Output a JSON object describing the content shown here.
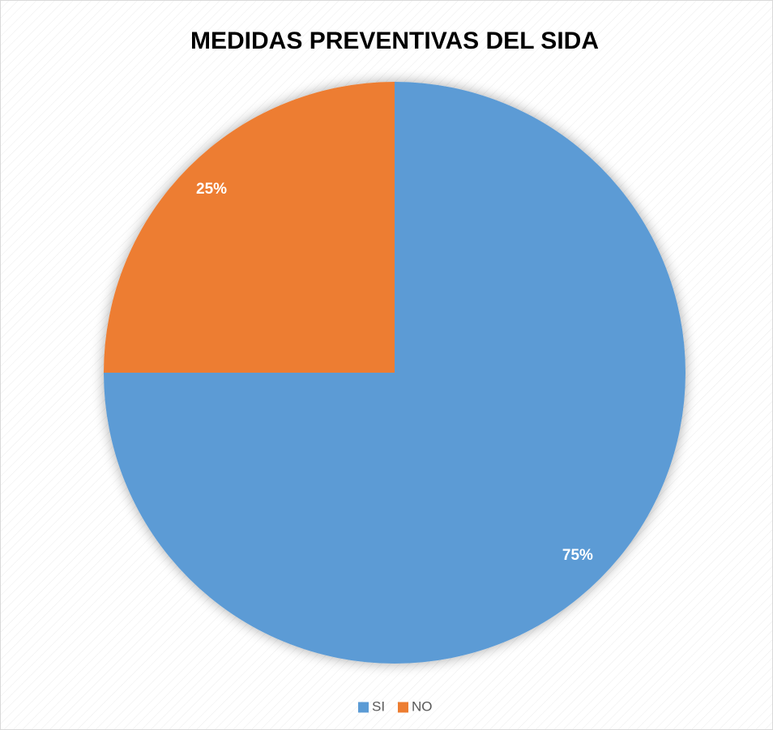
{
  "chart_data": {
    "type": "pie",
    "title": "MEDIDAS PREVENTIVAS DEL SIDA",
    "categories": [
      "SI",
      "NO"
    ],
    "values": [
      75,
      25
    ],
    "value_labels": [
      "75%",
      "25%"
    ],
    "colors": [
      "#5b9bd5",
      "#ed7d31"
    ],
    "legend": "bottom"
  }
}
